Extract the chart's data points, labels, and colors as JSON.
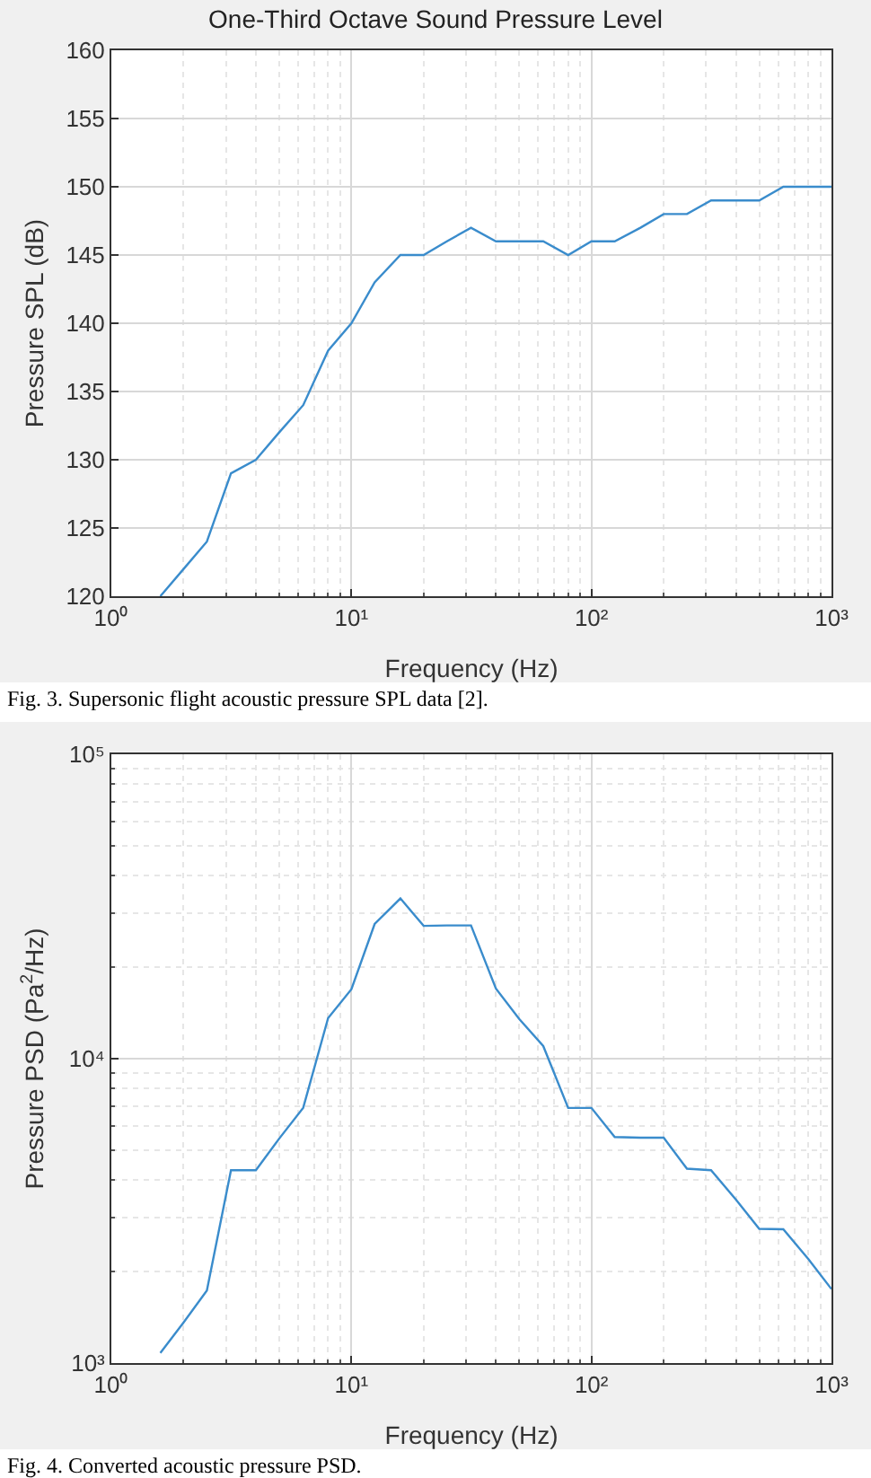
{
  "chart_data": [
    {
      "type": "line",
      "title": "One-Third Octave Sound Pressure Level",
      "xlabel": "Frequency (Hz)",
      "ylabel": "Pressure SPL (dB)",
      "log": "x",
      "grid": true,
      "xlim": [
        1,
        1000
      ],
      "ylim": [
        120,
        160
      ],
      "xticks": [
        {
          "value": 1,
          "label": "10⁰"
        },
        {
          "value": 10,
          "label": "10¹"
        },
        {
          "value": 100,
          "label": "10²"
        },
        {
          "value": 1000,
          "label": "10³"
        }
      ],
      "yticks": [
        120,
        125,
        130,
        135,
        140,
        145,
        150,
        155,
        160
      ],
      "x": [
        1.6,
        2,
        2.5,
        3.15,
        4,
        5,
        6.3,
        8,
        10,
        12.5,
        16,
        20,
        25,
        31.5,
        40,
        50,
        63,
        80,
        100,
        125,
        160,
        200,
        250,
        315,
        400,
        500,
        630,
        800,
        1000
      ],
      "series": [
        {
          "color": "#3a8ccc",
          "values": [
            120,
            122,
            124,
            129,
            130,
            132,
            134,
            138,
            140,
            143,
            145,
            145,
            146,
            147,
            146,
            146,
            146,
            145,
            146,
            146,
            147,
            148,
            148,
            149,
            149,
            149,
            150,
            150,
            150
          ]
        }
      ],
      "annotations": [
        "Fig. 3. Supersonic flight acoustic pressure SPL data [2]."
      ]
    },
    {
      "type": "line",
      "xlabel": "Frequency (Hz)",
      "ylabel": "Pressure PSD (Pa$^{2}$/Hz)",
      "log": "xy",
      "grid": true,
      "xlim": [
        1,
        1000
      ],
      "ylim": [
        1000,
        100000
      ],
      "xticks": [
        {
          "value": 1,
          "label": "10⁰"
        },
        {
          "value": 10,
          "label": "10¹"
        },
        {
          "value": 100,
          "label": "10²"
        },
        {
          "value": 1000,
          "label": "10³"
        }
      ],
      "yticks": [
        {
          "value": 1000,
          "label": "10³"
        },
        {
          "value": 10000,
          "label": "10⁴"
        },
        {
          "value": 100000,
          "label": "10⁵"
        }
      ],
      "x": [
        1.6,
        2,
        2.5,
        3.15,
        4,
        5,
        6.3,
        8,
        10,
        12.5,
        16,
        20,
        25,
        31.5,
        40,
        50,
        63,
        80,
        100,
        125,
        160,
        200,
        250,
        315,
        400,
        500,
        630,
        800,
        1000
      ],
      "series": [
        {
          "color": "#3a8ccc",
          "values": [
            1080,
            1360,
            1730,
            4300,
            4300,
            5460,
            6900,
            13600,
            16900,
            27700,
            33600,
            27300,
            27400,
            27400,
            17000,
            13500,
            11000,
            6890,
            6890,
            5530,
            5500,
            5500,
            4350,
            4300,
            3440,
            2760,
            2750,
            2200,
            1750
          ]
        }
      ],
      "annotations": [
        "Fig. 4. Converted acoustic pressure PSD."
      ]
    }
  ]
}
